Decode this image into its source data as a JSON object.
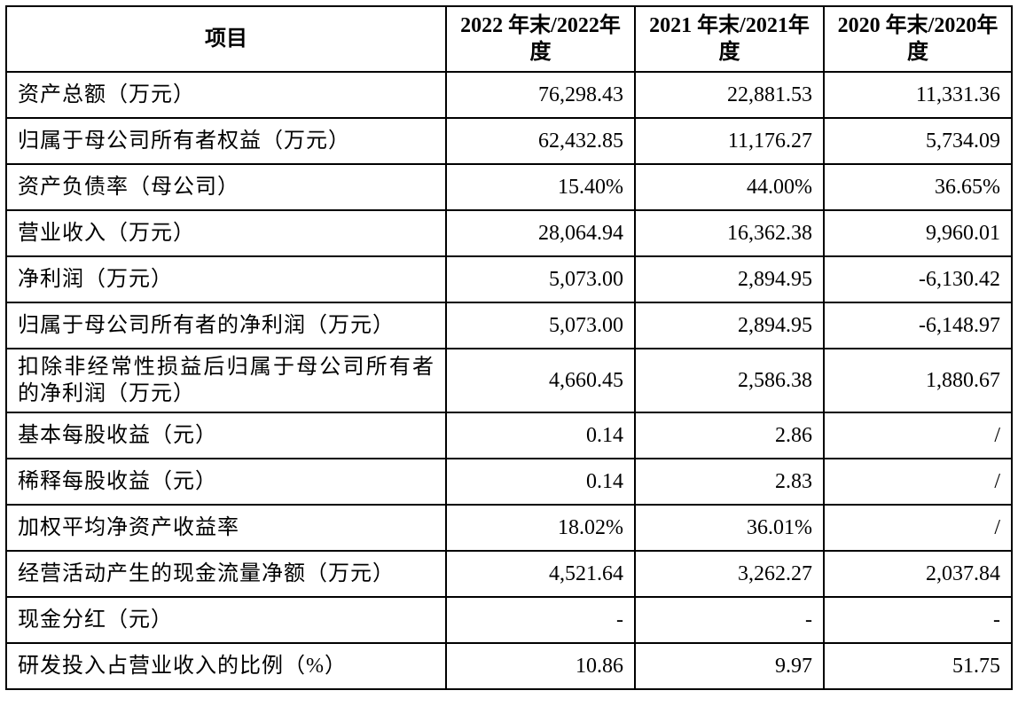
{
  "table": {
    "header": [
      "项目",
      "2022 年末/2022年度",
      "2021 年末/2021年度",
      "2020 年末/2020年度"
    ],
    "rows": [
      [
        "资产总额（万元）",
        "76,298.43",
        "22,881.53",
        "11,331.36"
      ],
      [
        "归属于母公司所有者权益（万元）",
        "62,432.85",
        "11,176.27",
        "5,734.09"
      ],
      [
        "资产负债率（母公司）",
        "15.40%",
        "44.00%",
        "36.65%"
      ],
      [
        "营业收入（万元）",
        "28,064.94",
        "16,362.38",
        "9,960.01"
      ],
      [
        "净利润（万元）",
        "5,073.00",
        "2,894.95",
        "-6,130.42"
      ],
      [
        "归属于母公司所有者的净利润（万元）",
        "5,073.00",
        "2,894.95",
        "-6,148.97"
      ],
      [
        "扣除非经常性损益后归属于母公司所有者的净利润（万元）",
        "4,660.45",
        "2,586.38",
        "1,880.67"
      ],
      [
        "基本每股收益（元）",
        "0.14",
        "2.86",
        "/"
      ],
      [
        "稀释每股收益（元）",
        "0.14",
        "2.83",
        "/"
      ],
      [
        "加权平均净资产收益率",
        "18.02%",
        "36.01%",
        "/"
      ],
      [
        "经营活动产生的现金流量净额（万元）",
        "4,521.64",
        "3,262.27",
        "2,037.84"
      ],
      [
        "现金分红（元）",
        "-",
        "-",
        "-"
      ],
      [
        "研发投入占营业收入的比例（%）",
        "10.86",
        "9.97",
        "51.75"
      ]
    ]
  }
}
